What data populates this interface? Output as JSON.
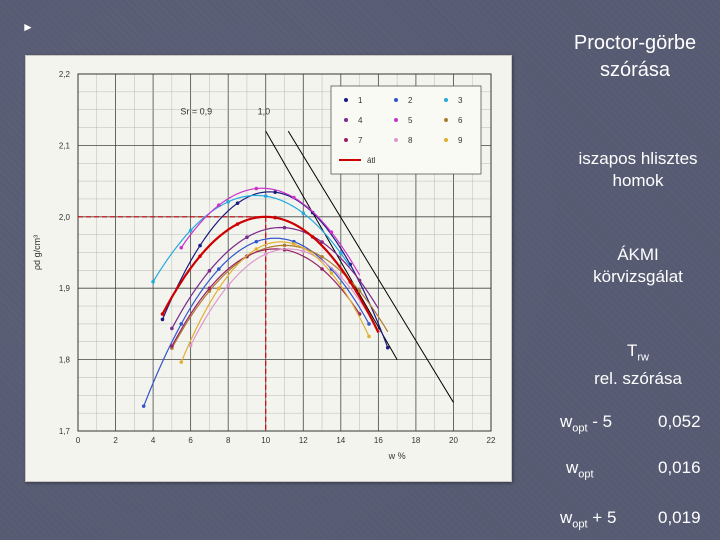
{
  "sidebar": {
    "title_line1": "Proctor-görbe",
    "title_line2": "szórása",
    "soil_line1": "iszapos hlisztes",
    "soil_line2": "homok",
    "lab_line1": "ÁKMI",
    "lab_line2": "körvizsgálat",
    "trw_main": "T",
    "trw_sub": "rw",
    "trw_line2": "rel. szórása",
    "rows": [
      {
        "label_main": "w",
        "label_sub": "opt",
        "label_suffix": " - 5",
        "value": "0,052"
      },
      {
        "label_main": "w",
        "label_sub": "opt",
        "label_suffix": "",
        "value": "0,016"
      },
      {
        "label_main": "w",
        "label_sub": "opt",
        "label_suffix": " + 5",
        "value": "0,019"
      }
    ]
  },
  "colors": {
    "background": "#565a72",
    "panel": "#f4f4ef",
    "avg_curve": "#cc0000"
  },
  "chart_data": {
    "type": "line",
    "title": "",
    "ylabel": "ρd g/cm³",
    "xlabel": "w %",
    "xlim": [
      0,
      22
    ],
    "ylim": [
      1.7,
      2.2
    ],
    "x_ticks": [
      "0",
      "2",
      "4",
      "6",
      "8",
      "10",
      "12",
      "14",
      "16",
      "18",
      "20",
      "22"
    ],
    "y_ticks": [
      "1,7",
      "1,8",
      "1,9",
      "2,0",
      "2,1",
      "2,2"
    ],
    "sr_label": "Sr = 0,9",
    "sr_label2": "1,0",
    "legend": [
      "1",
      "2",
      "3",
      "4",
      "5",
      "6",
      "7",
      "8",
      "9",
      "átl"
    ],
    "saturation_lines": [
      {
        "name": "Sr = 0,9",
        "points": [
          [
            10.0,
            2.12
          ],
          [
            17.0,
            1.8
          ]
        ]
      },
      {
        "name": "Sr = 1,0",
        "points": [
          [
            11.2,
            2.12
          ],
          [
            20.0,
            1.74
          ]
        ]
      }
    ],
    "series": [
      {
        "name": "1",
        "color": "#1a1a80",
        "wopt": 10.2,
        "rhomax": 2.035,
        "a": 0.0055,
        "range": [
          4.5,
          16.5
        ]
      },
      {
        "name": "2",
        "color": "#3355cc",
        "wopt": 10.5,
        "rhomax": 1.97,
        "a": 0.0048,
        "range": [
          3.5,
          15.5
        ]
      },
      {
        "name": "3",
        "color": "#22aadd",
        "wopt": 9.5,
        "rhomax": 2.03,
        "a": 0.004,
        "range": [
          4.0,
          14.5
        ]
      },
      {
        "name": "4",
        "color": "#7a2a8a",
        "wopt": 10.8,
        "rhomax": 1.985,
        "a": 0.0042,
        "range": [
          5.0,
          16.0
        ]
      },
      {
        "name": "5",
        "color": "#cc33cc",
        "wopt": 9.8,
        "rhomax": 2.04,
        "a": 0.0045,
        "range": [
          5.5,
          15.0
        ]
      },
      {
        "name": "6",
        "color": "#b07a30",
        "wopt": 11.0,
        "rhomax": 1.96,
        "a": 0.004,
        "range": [
          5.0,
          16.5
        ]
      },
      {
        "name": "7",
        "color": "#992266",
        "wopt": 10.5,
        "rhomax": 1.955,
        "a": 0.0045,
        "range": [
          5.0,
          15.0
        ]
      },
      {
        "name": "8",
        "color": "#dd99cc",
        "wopt": 11.2,
        "rhomax": 1.955,
        "a": 0.005,
        "range": [
          6.0,
          16.0
        ]
      },
      {
        "name": "9",
        "color": "#e0b030",
        "wopt": 10.8,
        "rhomax": 1.965,
        "a": 0.006,
        "range": [
          5.5,
          15.5
        ]
      },
      {
        "name": "átl",
        "color": "#cc0000",
        "wopt": 10.0,
        "rhomax": 2.0,
        "a": 0.0045,
        "range": [
          4.5,
          16.0
        ],
        "thick": true
      }
    ],
    "opt_marker": {
      "w": 10.0,
      "rho": 2.0
    }
  }
}
